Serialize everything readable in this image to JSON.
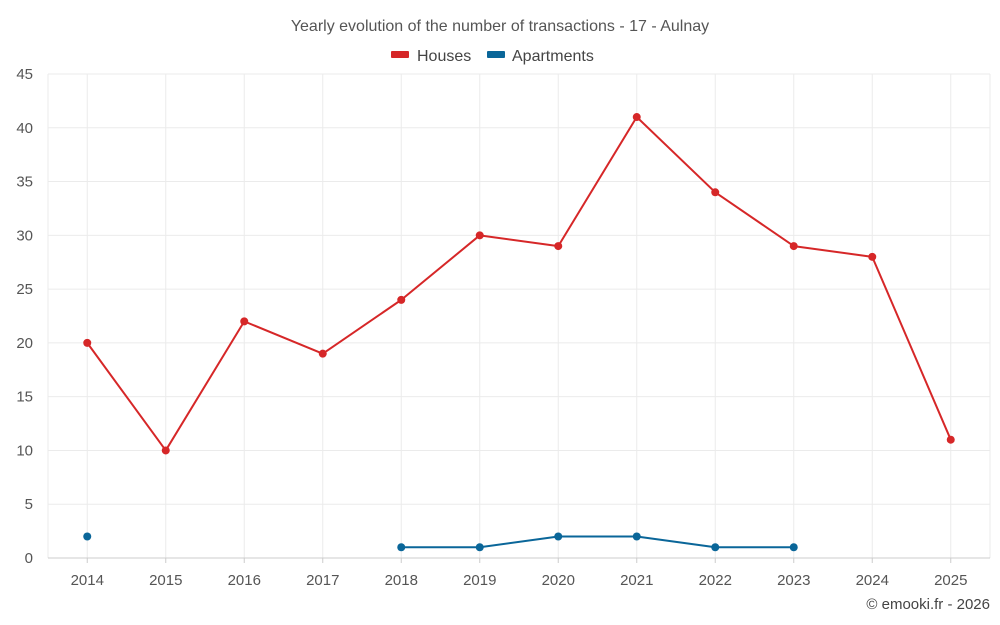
{
  "chart_data": {
    "type": "line",
    "title": "Yearly evolution of the number of transactions - 17 - Aulnay",
    "categories": [
      "2014",
      "2015",
      "2016",
      "2017",
      "2018",
      "2019",
      "2020",
      "2021",
      "2022",
      "2023",
      "2024",
      "2025"
    ],
    "ylim": [
      0,
      45
    ],
    "yticks": [
      0,
      5,
      10,
      15,
      20,
      25,
      30,
      35,
      40,
      45
    ],
    "legend_position": "top-center",
    "grid": true,
    "series": [
      {
        "name": "Houses",
        "color": "#d62728",
        "values": [
          20,
          10,
          22,
          19,
          24,
          30,
          29,
          41,
          34,
          29,
          28,
          11
        ]
      },
      {
        "name": "Apartments",
        "color": "#0a6699",
        "values": [
          2,
          null,
          null,
          null,
          1,
          1,
          2,
          2,
          1,
          1,
          null,
          null
        ]
      }
    ]
  },
  "credit": "© emooki.fr - 2026"
}
